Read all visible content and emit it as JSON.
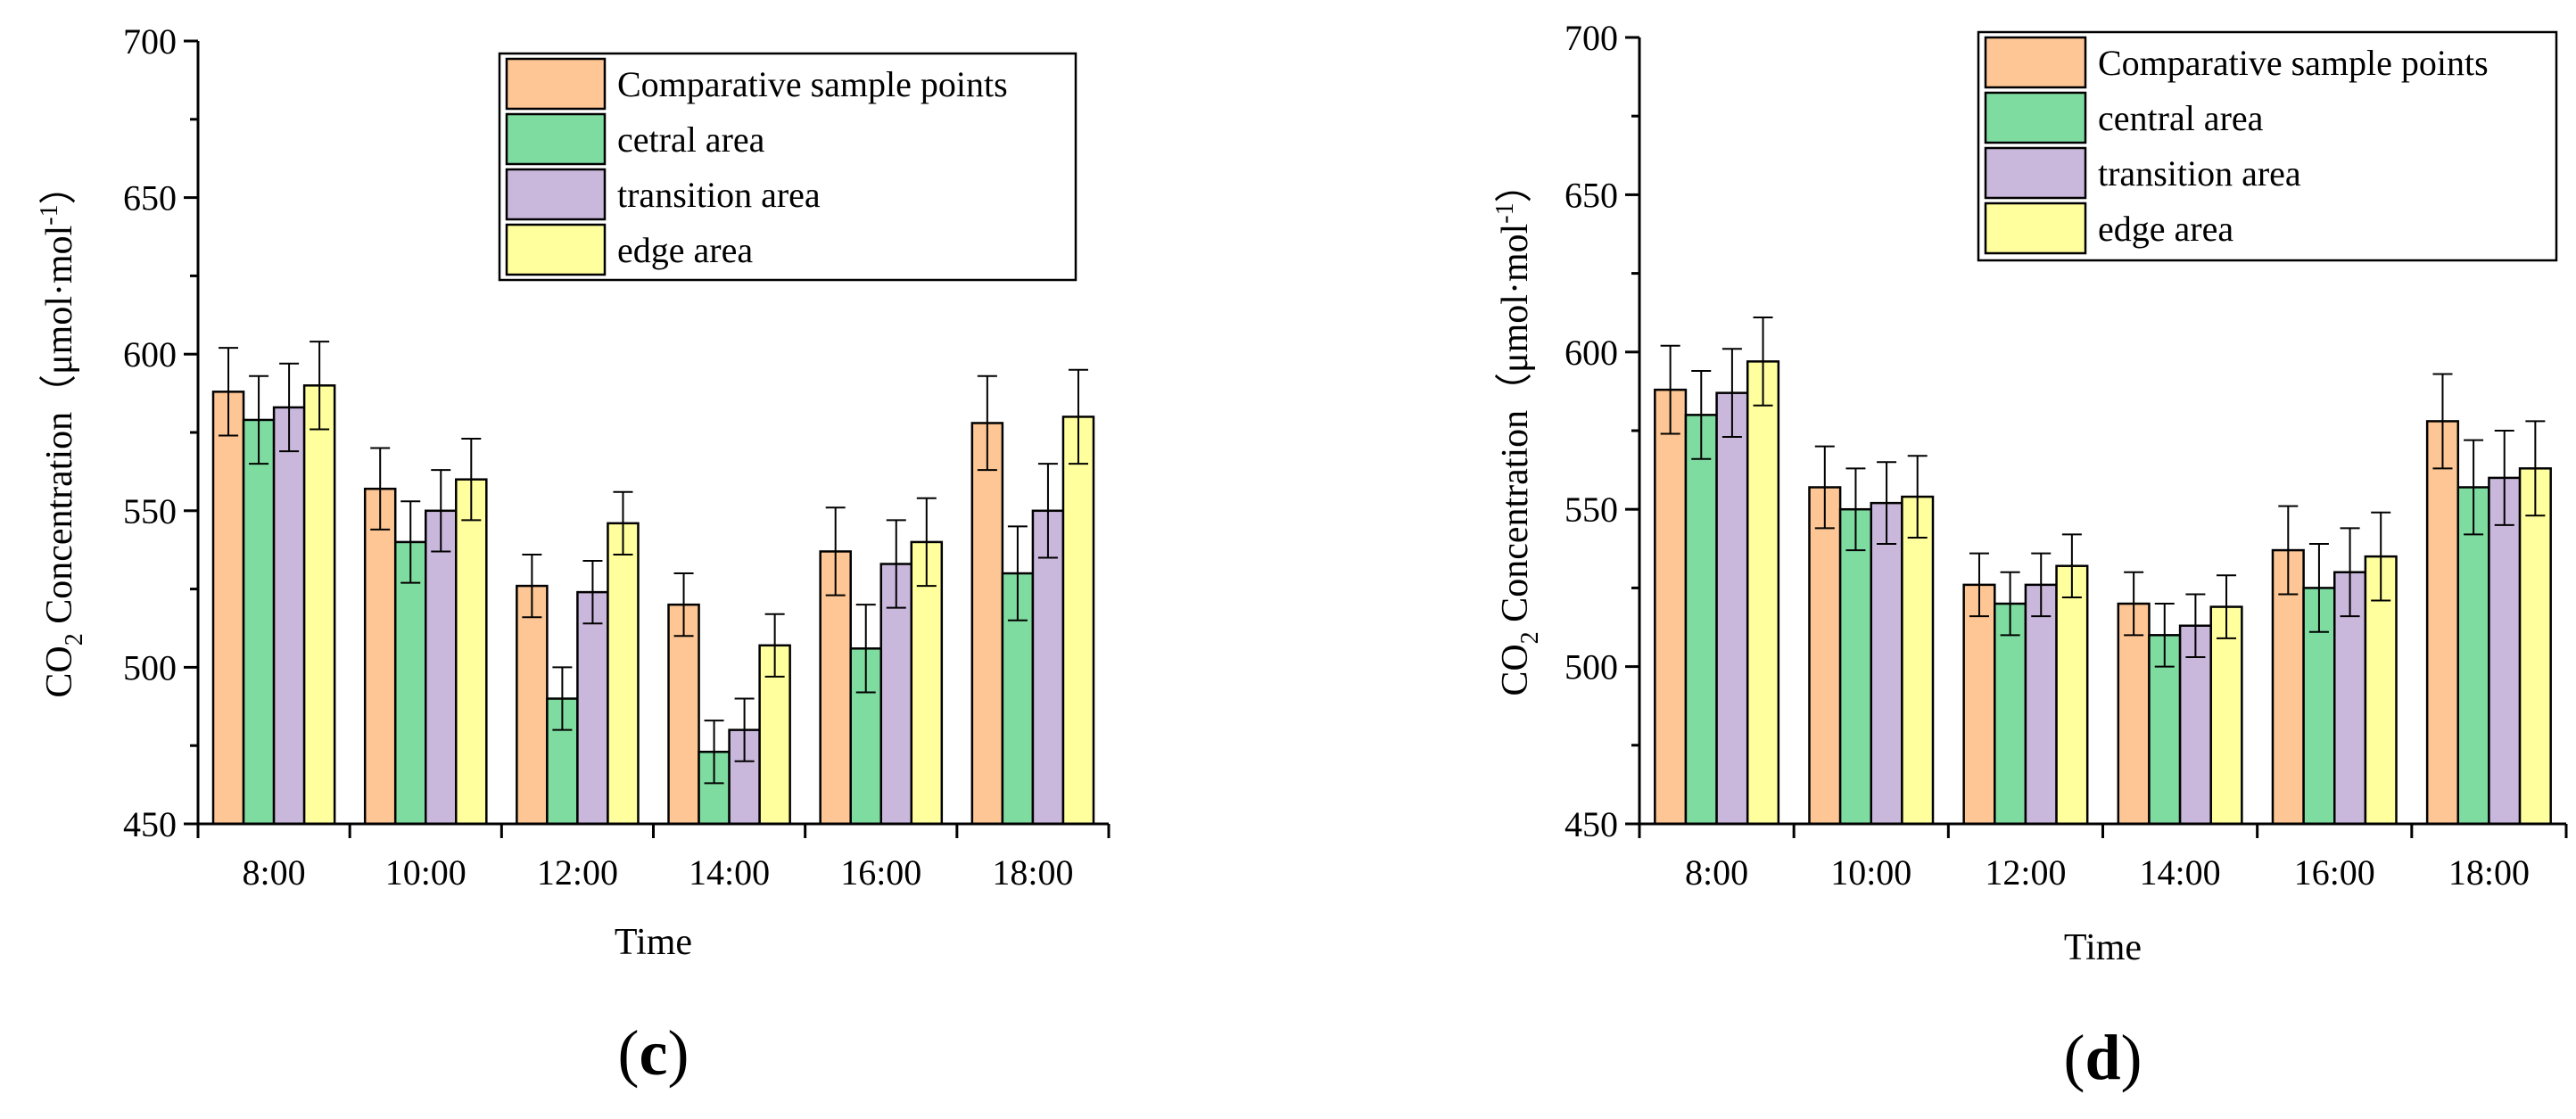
{
  "chart_data": [
    {
      "type": "bar",
      "panel_label_open": "(",
      "panel_label": "c",
      "panel_label_close": ")",
      "categories": [
        "8:00",
        "10:00",
        "12:00",
        "14:00",
        "16:00",
        "18:00"
      ],
      "xlabel": "Time",
      "ylabel_pre": "CO",
      "ylabel_sub": "2",
      "ylabel_mid": " Concentration（μmol·mol",
      "ylabel_sup": "-1",
      "ylabel_post": "）",
      "ylim": [
        450,
        700
      ],
      "yticks": [
        450,
        500,
        550,
        600,
        650,
        700
      ],
      "legend_position": "top-right",
      "series": [
        {
          "name": "Comparative sample points",
          "color": "#FDC694",
          "values": [
            588,
            557,
            526,
            520,
            537,
            578
          ],
          "errors": [
            14,
            13,
            10,
            10,
            14,
            15
          ]
        },
        {
          "name": "cetral area",
          "color": "#7FDCA0",
          "values": [
            579,
            540,
            490,
            473,
            506,
            530
          ],
          "errors": [
            14,
            13,
            10,
            10,
            14,
            15
          ]
        },
        {
          "name": "transition area",
          "color": "#C9B7DC",
          "values": [
            583,
            550,
            524,
            480,
            533,
            550
          ],
          "errors": [
            14,
            13,
            10,
            10,
            14,
            15
          ]
        },
        {
          "name": "edge area",
          "color": "#FFFF9E",
          "values": [
            590,
            560,
            546,
            507,
            540,
            580
          ],
          "errors": [
            14,
            13,
            10,
            10,
            14,
            15
          ]
        }
      ]
    },
    {
      "type": "bar",
      "panel_label_open": "(",
      "panel_label": "d",
      "panel_label_close": ")",
      "categories": [
        "8:00",
        "10:00",
        "12:00",
        "14:00",
        "16:00",
        "18:00"
      ],
      "xlabel": "Time",
      "ylabel_pre": "CO",
      "ylabel_sub": "2",
      "ylabel_mid": " Concentration（μmol·mol",
      "ylabel_sup": "-1",
      "ylabel_post": "）",
      "ylim": [
        450,
        700
      ],
      "yticks": [
        450,
        500,
        550,
        600,
        650,
        700
      ],
      "legend_position": "top-right",
      "series": [
        {
          "name": "Comparative sample points",
          "color": "#FDC694",
          "values": [
            588,
            557,
            526,
            520,
            537,
            578
          ],
          "errors": [
            14,
            13,
            10,
            10,
            14,
            15
          ]
        },
        {
          "name": "central area",
          "color": "#7FDCA0",
          "values": [
            580,
            550,
            520,
            510,
            525,
            557
          ],
          "errors": [
            14,
            13,
            10,
            10,
            14,
            15
          ]
        },
        {
          "name": "transition area",
          "color": "#C9B7DC",
          "values": [
            587,
            552,
            526,
            513,
            530,
            560
          ],
          "errors": [
            14,
            13,
            10,
            10,
            14,
            15
          ]
        },
        {
          "name": "edge area",
          "color": "#FFFF9E",
          "values": [
            597,
            554,
            532,
            519,
            535,
            563
          ],
          "errors": [
            14,
            13,
            10,
            10,
            14,
            15
          ]
        }
      ]
    }
  ]
}
